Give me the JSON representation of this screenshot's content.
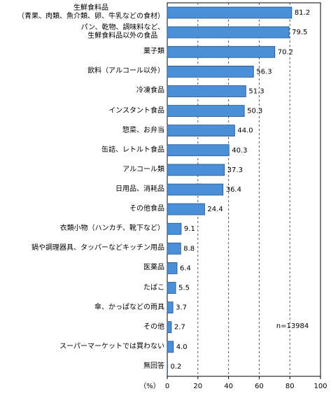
{
  "chart_data": {
    "type": "barh",
    "categories": [
      "生鮮食料品\n（青果、肉類、魚介類、卵、牛乳などの食材）",
      "パン、乾物、調味料など、\n生鮮食料品以外の食品",
      "菓子類",
      "飲料（アルコール以外）",
      "冷凍食品",
      "インスタント食品",
      "惣菜、お弁当",
      "缶詰、レトルト食品",
      "アルコール類",
      "日用品、消耗品",
      "その他食品",
      "衣類小物（ハンカチ、靴下など）",
      "鍋や調理器具、タッパーなどキッチン用品",
      "医薬品",
      "たばこ",
      "傘、かっぱなどの雨具",
      "その他",
      "スーパーマーケットでは買わない",
      "無回答"
    ],
    "values": [
      81.2,
      79.5,
      70.2,
      56.3,
      51.3,
      50.3,
      44.0,
      40.3,
      37.3,
      36.4,
      24.4,
      9.1,
      8.8,
      6.4,
      5.5,
      3.7,
      2.7,
      4.0,
      0.2
    ],
    "value_labels": [
      "81.2",
      "79.5",
      "70.2",
      "56.3",
      "51.3",
      "50.3",
      "44.0",
      "40.3",
      "37.3",
      "36.4",
      "24.4",
      "9.1",
      "8.8",
      "6.4",
      "5.5",
      "3.7",
      "2.7",
      "4.0",
      "0.2"
    ],
    "color": "#4a90d9",
    "xlim": [
      0,
      100
    ],
    "xticks": [
      0,
      20,
      40,
      60,
      80,
      100
    ],
    "xlabel": "（%）",
    "annotation": "n=13984",
    "grid": true
  }
}
